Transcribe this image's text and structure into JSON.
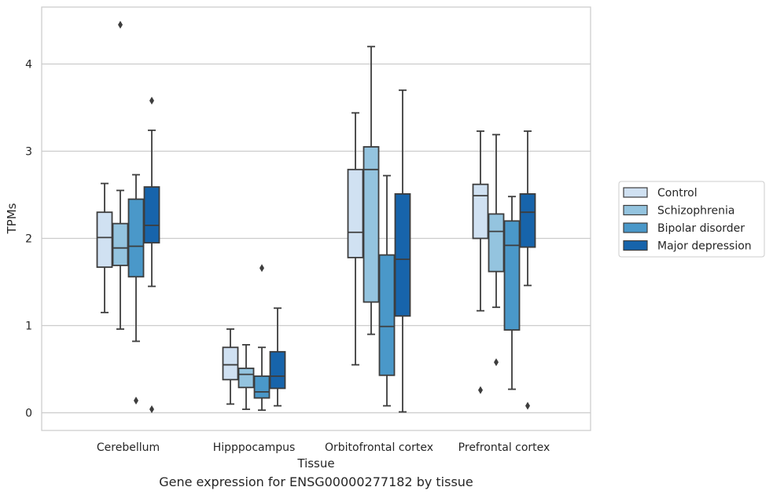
{
  "caption": "Gene expression for ENSG00000277182 by tissue",
  "chart_data": {
    "type": "boxplot",
    "xlabel": "Tissue",
    "ylabel": "TPMs",
    "ylim": [
      -0.2,
      4.7
    ],
    "yticks": [
      0,
      1,
      2,
      3,
      4
    ],
    "grid": "horizontal",
    "legend_position": "right",
    "categories": [
      "Cerebellum",
      "Hipppocampus",
      "Orbitofrontal cortex",
      "Prefrontal cortex"
    ],
    "series": [
      {
        "name": "Control",
        "color": "#d0e1f2",
        "boxes": [
          {
            "whislo": 1.15,
            "q1": 1.67,
            "med": 2.01,
            "q3": 2.3,
            "whishi": 2.63,
            "fliers": []
          },
          {
            "whislo": 0.1,
            "q1": 0.38,
            "med": 0.55,
            "q3": 0.75,
            "whishi": 0.96,
            "fliers": []
          },
          {
            "whislo": 0.55,
            "q1": 1.78,
            "med": 2.07,
            "q3": 2.79,
            "whishi": 3.44,
            "fliers": []
          },
          {
            "whislo": 1.17,
            "q1": 2.0,
            "med": 2.49,
            "q3": 2.62,
            "whishi": 3.23,
            "fliers": [
              0.26
            ]
          }
        ]
      },
      {
        "name": "Schizophrenia",
        "color": "#94c4df",
        "boxes": [
          {
            "whislo": 0.96,
            "q1": 1.69,
            "med": 1.89,
            "q3": 2.17,
            "whishi": 2.55,
            "fliers": [
              4.45
            ]
          },
          {
            "whislo": 0.04,
            "q1": 0.29,
            "med": 0.44,
            "q3": 0.51,
            "whishi": 0.78,
            "fliers": []
          },
          {
            "whislo": 0.9,
            "q1": 1.27,
            "med": 2.79,
            "q3": 3.05,
            "whishi": 4.2,
            "fliers": []
          },
          {
            "whislo": 1.21,
            "q1": 1.62,
            "med": 2.08,
            "q3": 2.28,
            "whishi": 3.19,
            "fliers": [
              0.58
            ]
          }
        ]
      },
      {
        "name": "Bipolar disorder",
        "color": "#4a98c9",
        "boxes": [
          {
            "whislo": 0.82,
            "q1": 1.56,
            "med": 1.91,
            "q3": 2.45,
            "whishi": 2.73,
            "fliers": [
              0.14
            ]
          },
          {
            "whislo": 0.03,
            "q1": 0.17,
            "med": 0.24,
            "q3": 0.42,
            "whishi": 0.75,
            "fliers": [
              1.66
            ]
          },
          {
            "whislo": 0.08,
            "q1": 0.43,
            "med": 0.99,
            "q3": 1.81,
            "whishi": 2.72,
            "fliers": []
          },
          {
            "whislo": 0.27,
            "q1": 0.95,
            "med": 1.92,
            "q3": 2.2,
            "whishi": 2.48,
            "fliers": []
          }
        ]
      },
      {
        "name": "Major depression",
        "color": "#1764ab",
        "boxes": [
          {
            "whislo": 1.45,
            "q1": 1.95,
            "med": 2.15,
            "q3": 2.59,
            "whishi": 3.24,
            "fliers": [
              3.58,
              0.04
            ]
          },
          {
            "whislo": 0.08,
            "q1": 0.28,
            "med": 0.42,
            "q3": 0.7,
            "whishi": 1.2,
            "fliers": []
          },
          {
            "whislo": 0.01,
            "q1": 1.11,
            "med": 1.76,
            "q3": 2.51,
            "whishi": 3.7,
            "fliers": []
          },
          {
            "whislo": 1.46,
            "q1": 1.9,
            "med": 2.3,
            "q3": 2.51,
            "whishi": 3.23,
            "fliers": [
              0.08
            ]
          }
        ]
      }
    ]
  }
}
